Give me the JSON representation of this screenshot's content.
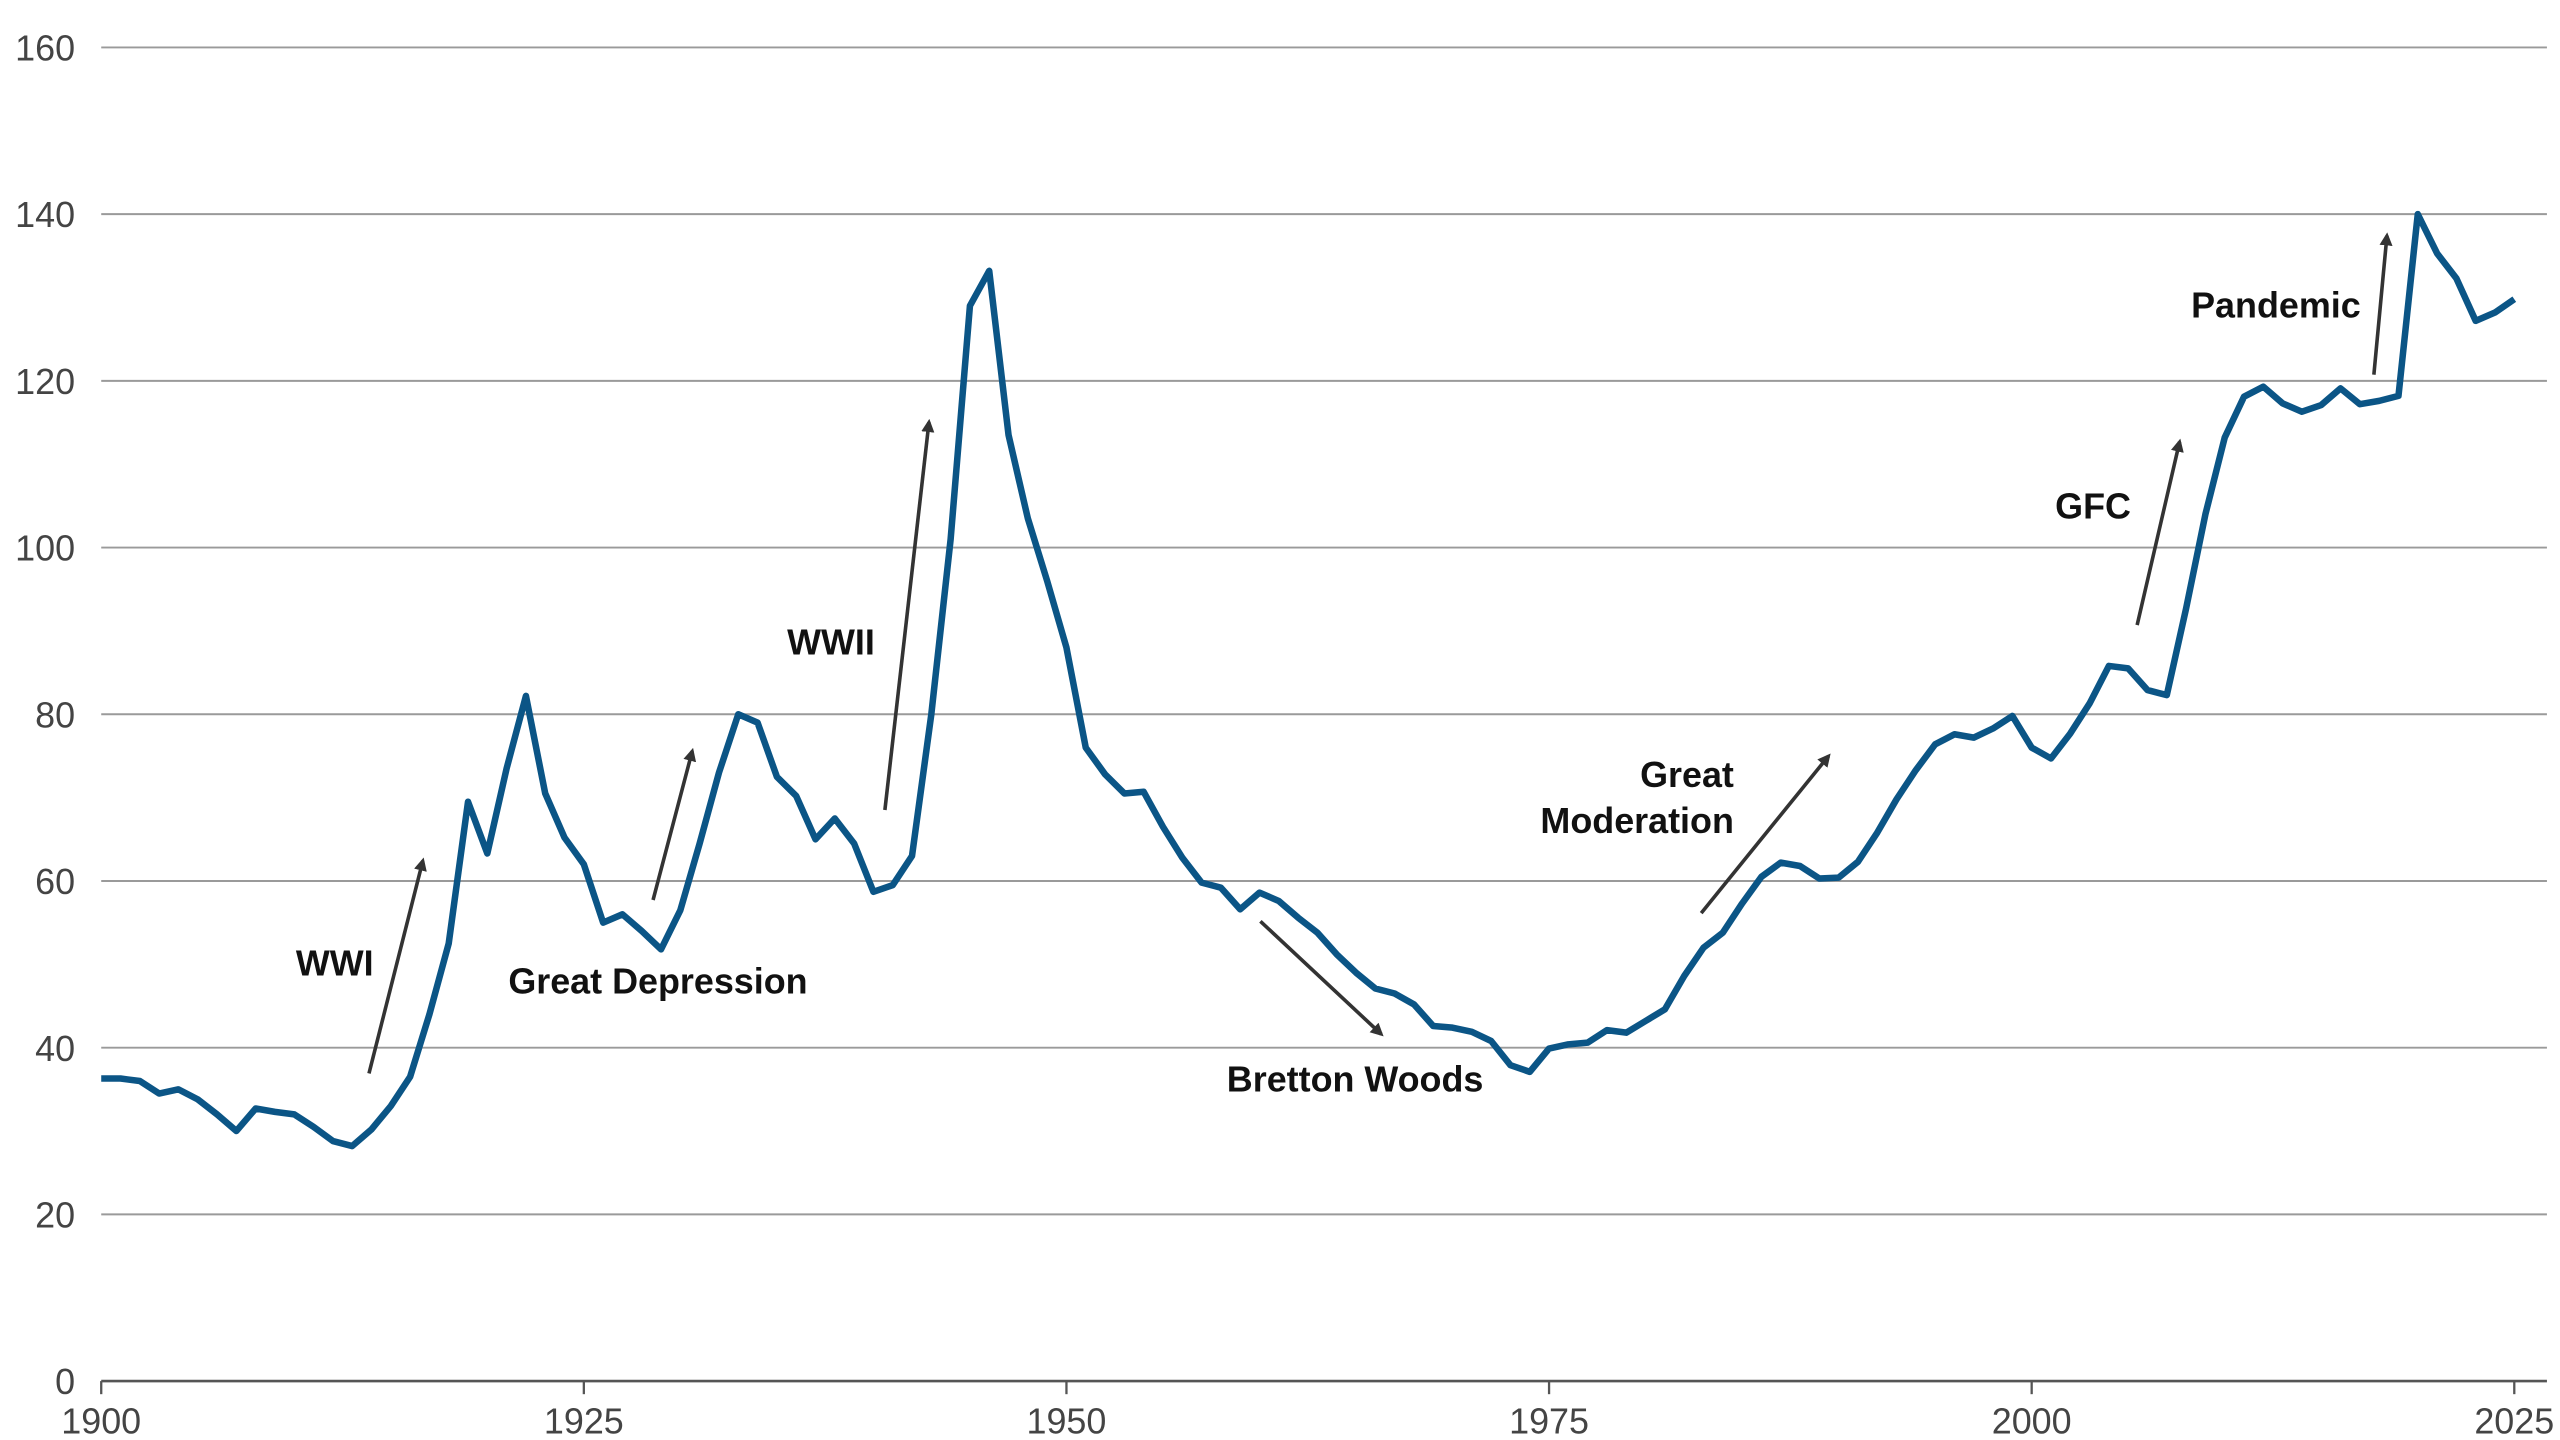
{
  "chart_data": {
    "type": "line",
    "x": [
      1900,
      1901,
      1902,
      1903,
      1904,
      1905,
      1906,
      1907,
      1908,
      1909,
      1910,
      1911,
      1912,
      1913,
      1914,
      1915,
      1916,
      1917,
      1918,
      1919,
      1920,
      1921,
      1922,
      1923,
      1924,
      1925,
      1926,
      1927,
      1928,
      1929,
      1930,
      1931,
      1932,
      1933,
      1934,
      1935,
      1936,
      1937,
      1938,
      1939,
      1940,
      1941,
      1942,
      1943,
      1944,
      1945,
      1946,
      1947,
      1948,
      1949,
      1950,
      1951,
      1952,
      1953,
      1954,
      1955,
      1956,
      1957,
      1958,
      1959,
      1960,
      1961,
      1962,
      1963,
      1964,
      1965,
      1966,
      1967,
      1968,
      1969,
      1970,
      1971,
      1972,
      1973,
      1974,
      1975,
      1976,
      1977,
      1978,
      1979,
      1980,
      1981,
      1982,
      1983,
      1984,
      1985,
      1986,
      1987,
      1988,
      1989,
      1990,
      1991,
      1992,
      1993,
      1994,
      1995,
      1996,
      1997,
      1998,
      1999,
      2000,
      2001,
      2002,
      2003,
      2004,
      2005,
      2006,
      2007,
      2008,
      2009,
      2010,
      2011,
      2012,
      2013,
      2014,
      2015,
      2016,
      2017,
      2018,
      2019,
      2020,
      2021,
      2022,
      2023,
      2024,
      2025
    ],
    "series": [
      {
        "color": "#0b5586",
        "values": [
          36.3,
          36.3,
          36,
          34.5,
          35,
          33.8,
          32,
          30,
          32.7,
          32.3,
          32,
          30.5,
          28.8,
          28.2,
          30.2,
          33,
          36.5,
          44,
          52.5,
          69.5,
          63.3,
          73.5,
          82.2,
          70.5,
          65.2,
          62,
          55,
          56,
          54,
          51.8,
          56.5,
          64.5,
          73,
          80,
          79,
          72.5,
          70.2,
          65,
          67.5,
          64.5,
          58.7,
          59.5,
          63,
          80,
          101,
          129,
          133.2,
          113.5,
          103.5,
          96,
          88,
          76,
          72.8,
          70.5,
          70.7,
          66.5,
          62.8,
          59.8,
          59.2,
          56.6,
          58.6,
          57.6,
          55.6,
          53.8,
          51.2,
          49,
          47.1,
          46.5,
          45.2,
          42.6,
          42.4,
          41.9,
          40.8,
          37.9,
          37.1,
          39.9,
          40.4,
          40.6,
          42.1,
          41.8,
          43.2,
          44.6,
          48.6,
          52,
          53.8,
          57.3,
          60.5,
          62.2,
          61.8,
          60.3,
          60.4,
          62.3,
          65.8,
          69.8,
          73.3,
          76.4,
          77.6,
          77.2,
          78.3,
          79.8,
          76,
          74.7,
          77.7,
          81.3,
          85.8,
          85.5,
          82.9,
          82.3,
          92.7,
          104,
          113.2,
          118.1,
          119.3,
          117.3,
          116.3,
          117.1,
          119.1,
          117.2,
          117.6,
          118.2,
          140,
          135.3,
          132.3,
          127.2,
          128.2,
          129.8
        ]
      }
    ],
    "xlim": [
      1900,
      2025
    ],
    "xticks": [
      1900,
      1925,
      1950,
      1975,
      2000,
      2025
    ],
    "ylim": [
      0,
      160
    ],
    "yticks": [
      0,
      20,
      40,
      60,
      80,
      100,
      120,
      140,
      160
    ],
    "grid": true,
    "annotations": [
      [
        "WWI"
      ],
      [
        "Great Depression"
      ],
      [
        "WWII"
      ],
      [
        "Bretton Woods"
      ],
      [
        "Great",
        "Moderation"
      ],
      [
        "GFC"
      ],
      [
        "Pandemic"
      ]
    ]
  }
}
